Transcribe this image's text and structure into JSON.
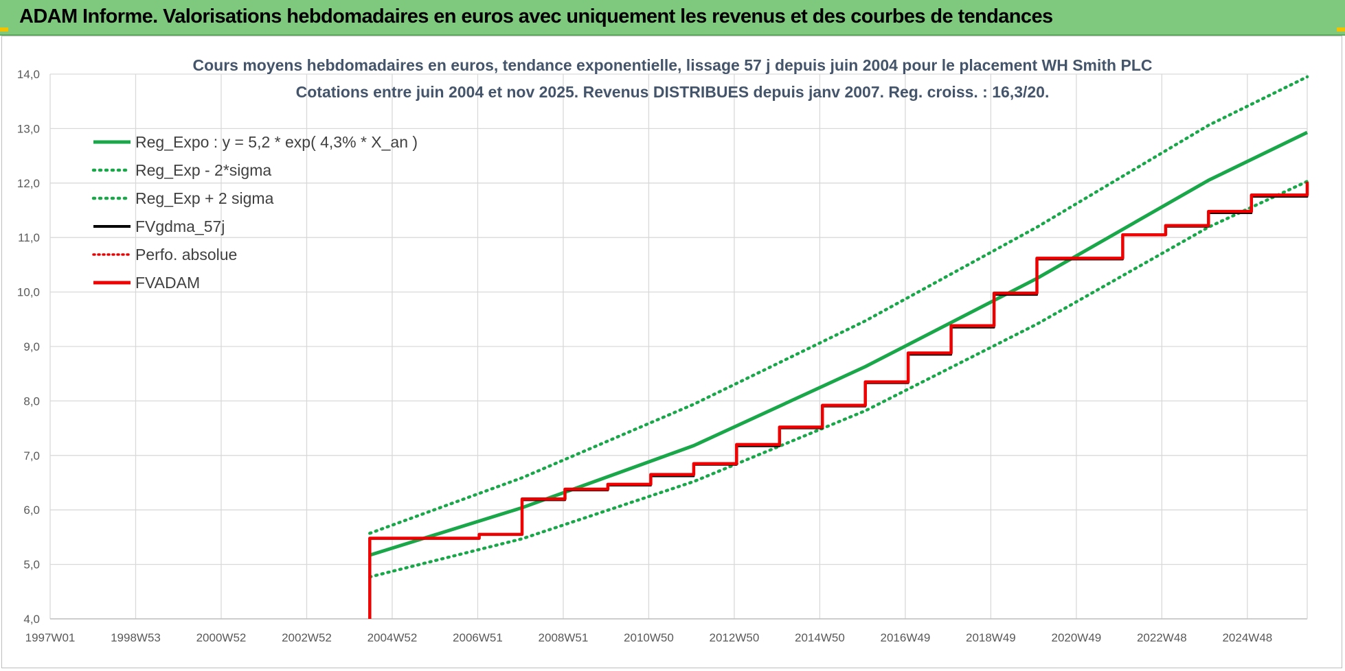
{
  "header": {
    "title": "ADAM Informe. Valorisations hebdomadaires en euros avec uniquement les revenus et des courbes de tendances"
  },
  "colors": {
    "banner": "#7fc97f",
    "reg_green": "#1aa74a",
    "fvadam_red": "#ee0000",
    "gdma_black": "#000000",
    "grid": "#d9d9d9"
  },
  "chart_data": {
    "type": "line",
    "title": "Cours moyens hebdomadaires en euros, tendance exponentielle, lissage 57 j depuis juin 2004 pour le placement WH Smith PLC",
    "subtitle": "Cotations entre juin 2004 et nov 2025. Revenus DISTRIBUES depuis janv 2007. Reg. croiss. : 16,3/20.",
    "x_ticks": [
      "1997W01",
      "1998W53",
      "2000W52",
      "2002W52",
      "2004W52",
      "2006W51",
      "2008W51",
      "2010W50",
      "2012W50",
      "2014W50",
      "2016W49",
      "2018W49",
      "2020W49",
      "2022W48",
      "2024W48"
    ],
    "x_range": [
      1997.0,
      2026.3
    ],
    "y_ticks": [
      "4,0",
      "5,0",
      "6,0",
      "7,0",
      "8,0",
      "9,0",
      "10,0",
      "11,0",
      "12,0",
      "13,0",
      "14,0"
    ],
    "ylim": [
      4.0,
      14.0
    ],
    "grid": true,
    "legend_position": "top-left",
    "legend": [
      {
        "label": "Reg_Expo : y = 5,2 * exp( 4,3% *  X_an )",
        "style": "solid",
        "color": "#1aa74a"
      },
      {
        "label": "Reg_Exp - 2*sigma",
        "style": "dotted",
        "color": "#1aa74a"
      },
      {
        "label": "Reg_Exp + 2 sigma",
        "style": "dotted",
        "color": "#1aa74a"
      },
      {
        "label": "FVgdma_57j",
        "style": "solid",
        "color": "#000000"
      },
      {
        "label": "Perfo. absolue",
        "style": "dotted",
        "color": "#ee0000"
      },
      {
        "label": "FVADAM",
        "style": "solid",
        "color": "#ee0000"
      }
    ],
    "series": [
      {
        "name": "Reg_Expo : y = 5,2 * exp( 4,3% *  X_an )",
        "x": [
          2004.45,
          2008,
          2012,
          2016,
          2020,
          2024,
          2026.3
        ],
        "y": [
          5.17,
          6.04,
          7.18,
          8.63,
          10.25,
          12.05,
          12.93
        ]
      },
      {
        "name": "Reg_Exp - 2*sigma",
        "x": [
          2004.45,
          2008,
          2012,
          2016,
          2020,
          2024,
          2026.3
        ],
        "y": [
          4.77,
          5.47,
          6.52,
          7.82,
          9.41,
          11.19,
          12.03
        ]
      },
      {
        "name": "Reg_Exp + 2 sigma",
        "x": [
          2004.45,
          2008,
          2012,
          2016,
          2020,
          2024,
          2026.3
        ],
        "y": [
          5.57,
          6.59,
          7.94,
          9.47,
          11.19,
          13.06,
          13.95
        ]
      },
      {
        "name": "FVgdma_57j",
        "x": [
          2004.45,
          2004.45,
          2006.0,
          2007.0,
          2008.0,
          2009.0,
          2010.0,
          2011.0,
          2012.0,
          2013.0,
          2014.0,
          2015.0,
          2016.0,
          2017.0,
          2018.0,
          2019.0,
          2020.0,
          2022.0,
          2023.0,
          2024.0,
          2025.0,
          2026.3
        ],
        "y": [
          4.0,
          5.47,
          5.47,
          5.55,
          6.18,
          6.36,
          6.45,
          6.62,
          6.83,
          7.17,
          7.5,
          7.9,
          8.33,
          8.85,
          9.35,
          9.95,
          10.6,
          11.05,
          11.2,
          11.45,
          11.75,
          12.02
        ]
      },
      {
        "name": "FVADAM",
        "x": [
          2004.45,
          2004.45,
          2006.0,
          2007.0,
          2008.0,
          2009.0,
          2010.0,
          2011.0,
          2012.0,
          2013.0,
          2014.0,
          2015.0,
          2016.0,
          2017.0,
          2018.0,
          2019.0,
          2020.0,
          2022.0,
          2023.0,
          2024.0,
          2025.0,
          2026.3
        ],
        "y": [
          4.0,
          5.48,
          5.48,
          5.55,
          6.2,
          6.38,
          6.47,
          6.65,
          6.85,
          7.2,
          7.52,
          7.92,
          8.35,
          8.88,
          9.38,
          9.98,
          10.62,
          11.05,
          11.22,
          11.48,
          11.78,
          12.02
        ]
      }
    ]
  }
}
